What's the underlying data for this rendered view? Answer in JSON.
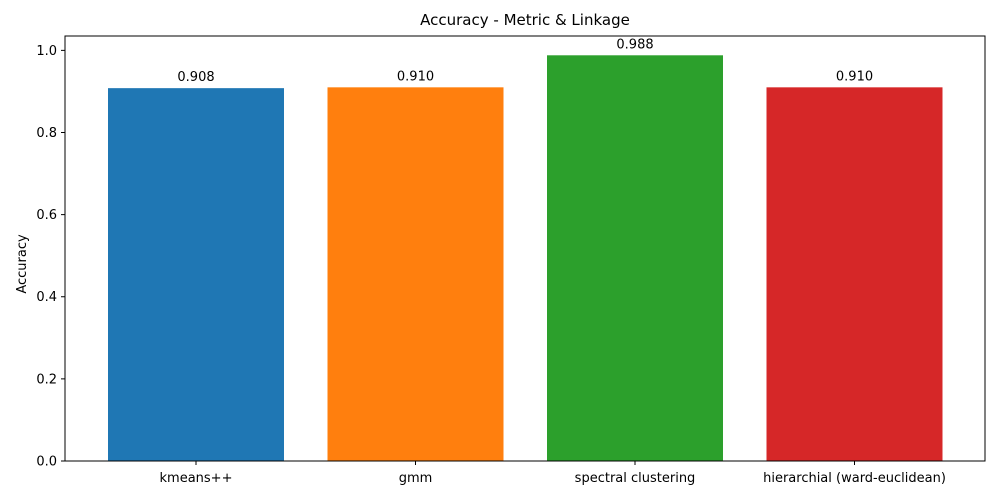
{
  "chart_data": {
    "type": "bar",
    "title": "Accuracy - Metric & Linkage",
    "xlabel": "",
    "ylabel": "Accuracy",
    "categories": [
      "kmeans++",
      "gmm",
      "spectral clustering",
      "hierarchial (ward-euclidean)"
    ],
    "values": [
      0.908,
      0.91,
      0.988,
      0.91
    ],
    "value_labels": [
      "0.908",
      "0.910",
      "0.988",
      "0.910"
    ],
    "colors": [
      "#1f77b4",
      "#ff7f0e",
      "#2ca02c",
      "#d62728"
    ],
    "ylim": [
      0,
      1.035
    ],
    "yticks": [
      0.0,
      0.2,
      0.4,
      0.6,
      0.8,
      1.0
    ],
    "ytick_labels": [
      "0.0",
      "0.2",
      "0.4",
      "0.6",
      "0.8",
      "1.0"
    ],
    "grid": false,
    "legend": "none"
  }
}
